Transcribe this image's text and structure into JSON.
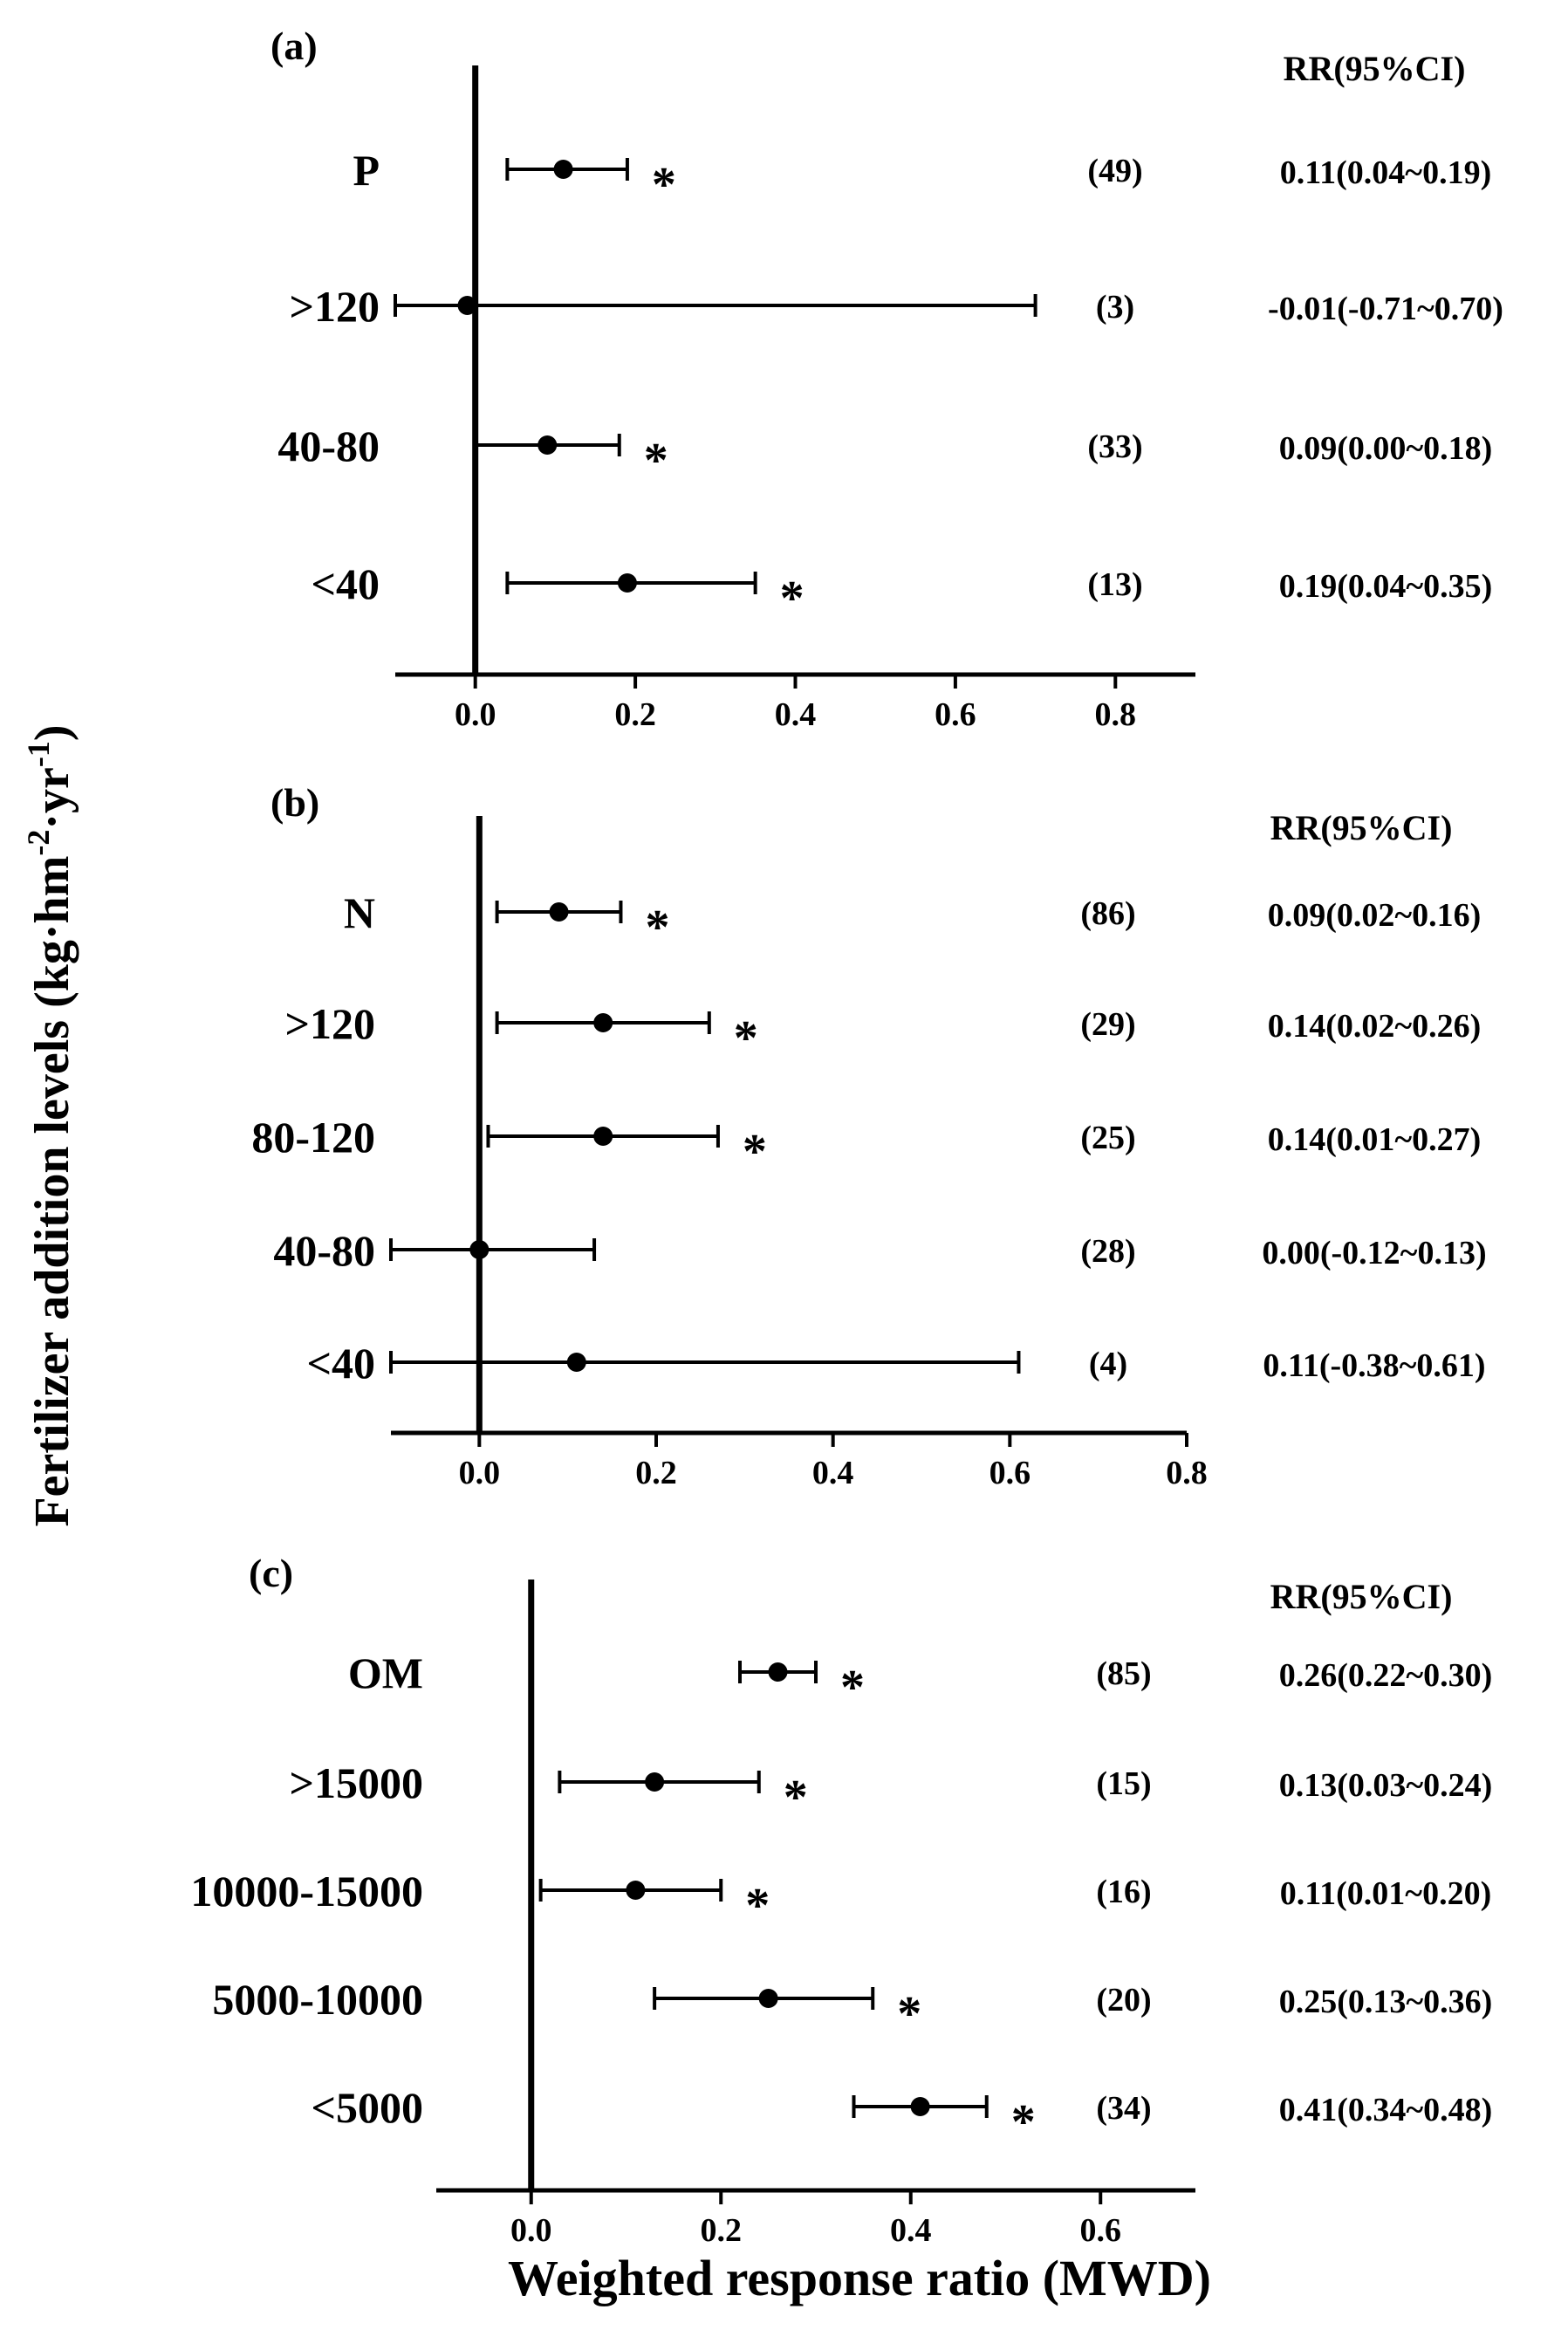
{
  "ylabel_main": "Fertilizer addition levels (kg·hm",
  "ylabel_sup1": "-2",
  "ylabel_mid": "·yr",
  "ylabel_sup2": "-1",
  "ylabel_end": ")",
  "xlabel": "Weighted response ratio (MWD)",
  "chart_data": [
    {
      "panel": "(a)",
      "type": "forest",
      "stat_header": "RR(95%CI)",
      "xlim": [
        -0.1,
        0.9
      ],
      "xticks": [
        "0.0",
        "0.2",
        "0.4",
        "0.6",
        "0.8"
      ],
      "rows": [
        {
          "label": "P",
          "mean": 0.11,
          "lo": 0.04,
          "hi": 0.19,
          "sig": true,
          "n": "(49)",
          "rr": "0.11(0.04~0.19)"
        },
        {
          "label": ">120",
          "mean": -0.01,
          "lo": -0.71,
          "hi": 0.7,
          "sig": false,
          "n": "(3)",
          "rr": "-0.01(-0.71~0.70)"
        },
        {
          "label": "40-80",
          "mean": 0.09,
          "lo": 0.0,
          "hi": 0.18,
          "sig": true,
          "n": "(33)",
          "rr": "0.09(0.00~0.18)"
        },
        {
          "label": "<40",
          "mean": 0.19,
          "lo": 0.04,
          "hi": 0.35,
          "sig": true,
          "n": "(13)",
          "rr": "0.19(0.04~0.35)"
        }
      ]
    },
    {
      "panel": "(b)",
      "type": "forest",
      "stat_header": "RR(95%CI)",
      "xlim": [
        -0.1,
        0.8
      ],
      "xticks": [
        "0.0",
        "0.2",
        "0.4",
        "0.6",
        "0.8"
      ],
      "rows": [
        {
          "label": "N",
          "mean": 0.09,
          "lo": 0.02,
          "hi": 0.16,
          "sig": true,
          "n": "(86)",
          "rr": "0.09(0.02~0.16)"
        },
        {
          "label": ">120",
          "mean": 0.14,
          "lo": 0.02,
          "hi": 0.26,
          "sig": true,
          "n": "(29)",
          "rr": "0.14(0.02~0.26)"
        },
        {
          "label": "80-120",
          "mean": 0.14,
          "lo": 0.01,
          "hi": 0.27,
          "sig": true,
          "n": "(25)",
          "rr": "0.14(0.01~0.27)"
        },
        {
          "label": "40-80",
          "mean": 0.0,
          "lo": -0.12,
          "hi": 0.13,
          "sig": false,
          "n": "(28)",
          "rr": "0.00(-0.12~0.13)"
        },
        {
          "label": "<40",
          "mean": 0.11,
          "lo": -0.38,
          "hi": 0.61,
          "sig": false,
          "n": "(4)",
          "rr": "0.11(-0.38~0.61)"
        }
      ]
    },
    {
      "panel": "(c)",
      "type": "forest",
      "stat_header": "RR(95%CI)",
      "xlim": [
        -0.1,
        0.7
      ],
      "xticks": [
        "0.0",
        "0.2",
        "0.4",
        "0.6"
      ],
      "rows": [
        {
          "label": "OM",
          "mean": 0.26,
          "lo": 0.22,
          "hi": 0.3,
          "sig": true,
          "n": "(85)",
          "rr": "0.26(0.22~0.30)"
        },
        {
          "label": ">15000",
          "mean": 0.13,
          "lo": 0.03,
          "hi": 0.24,
          "sig": true,
          "n": "(15)",
          "rr": "0.13(0.03~0.24)"
        },
        {
          "label": "10000-15000",
          "mean": 0.11,
          "lo": 0.01,
          "hi": 0.2,
          "sig": true,
          "n": "(16)",
          "rr": "0.11(0.01~0.20)"
        },
        {
          "label": "5000-10000",
          "mean": 0.25,
          "lo": 0.13,
          "hi": 0.36,
          "sig": true,
          "n": "(20)",
          "rr": "0.25(0.13~0.36)"
        },
        {
          "label": "<5000",
          "mean": 0.41,
          "lo": 0.34,
          "hi": 0.48,
          "sig": true,
          "n": "(34)",
          "rr": "0.41(0.34~0.48)"
        }
      ]
    }
  ]
}
